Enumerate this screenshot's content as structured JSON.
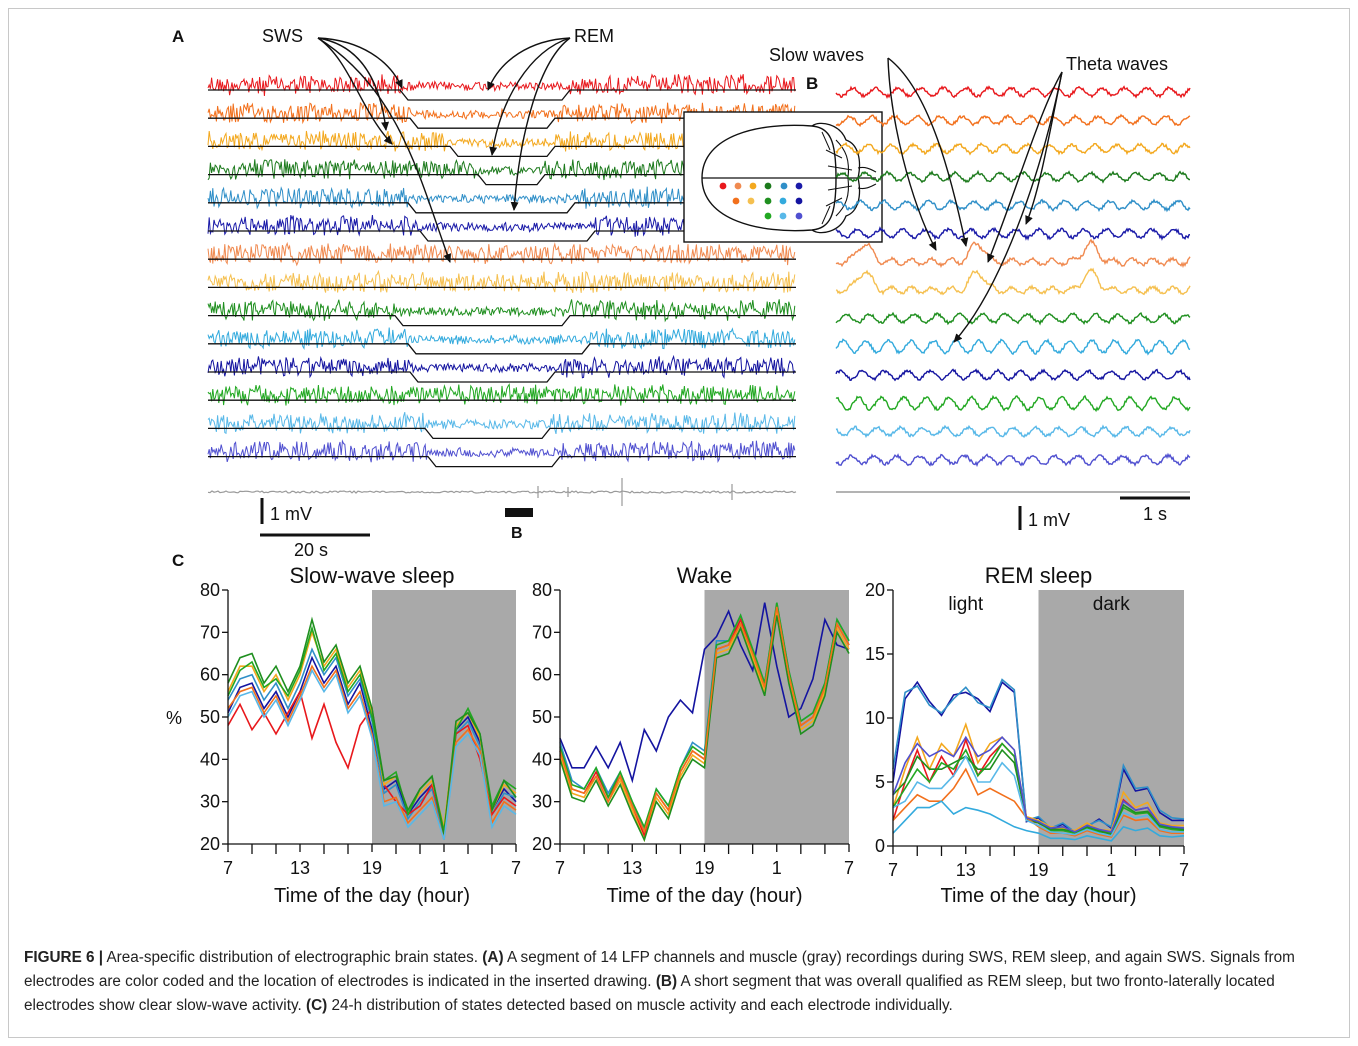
{
  "panel_labels": {
    "a": "A",
    "b": "B",
    "c": "C"
  },
  "panel_a": {
    "annotations": {
      "sws": "SWS",
      "rem": "REM"
    },
    "scale_voltage": "1 mV",
    "scale_time": "20 s",
    "segment_marker": "B"
  },
  "panel_b": {
    "annotations": {
      "slow": "Slow waves",
      "theta": "Theta waves"
    },
    "scale_voltage": "1 mV",
    "scale_time": "1 s"
  },
  "channel_colors": [
    "#e8181c",
    "#f2701c",
    "#f3a81e",
    "#1c7a1c",
    "#2f8fc8",
    "#1a1aa8",
    "#f08a50",
    "#f5c050",
    "#1f8f1f",
    "#33aadd",
    "#1414a0",
    "#22a822",
    "#58b8e8",
    "#5050d0"
  ],
  "muscle_color": "#9a9a9a",
  "inset_electrodes": [
    "#e8181c",
    "#f2701c",
    "#f3a81e",
    "#1c7a1c",
    "#2f8fc8",
    "#1a1aa8",
    "#f08a50",
    "#f5c050",
    "#1f8f1f",
    "#33aadd",
    "#1414a0",
    "#22a822",
    "#58b8e8",
    "#5050d0"
  ],
  "chart_data": [
    {
      "type": "line",
      "title": "Slow-wave sleep",
      "ylabel": "%",
      "xlabel": "Time of the day (hour)",
      "ylim": [
        20,
        80
      ],
      "yticks": [
        20,
        30,
        40,
        50,
        60,
        70,
        80
      ],
      "xtick_labels": [
        "7",
        "13",
        "19",
        "1",
        "7"
      ],
      "dark_period": [
        19,
        31
      ],
      "x": [
        7,
        8,
        9,
        10,
        11,
        12,
        13,
        14,
        15,
        16,
        17,
        18,
        19,
        20,
        21,
        22,
        23,
        24,
        25,
        26,
        27,
        28,
        29,
        30,
        31
      ],
      "series": [
        {
          "values": [
            51,
            57,
            58,
            52,
            56,
            50,
            56,
            64,
            58,
            62,
            53,
            58,
            47,
            33,
            35,
            27,
            31,
            34,
            23,
            47,
            50,
            44,
            28,
            33,
            30
          ]
        },
        {
          "values": [
            54,
            59,
            60,
            54,
            58,
            52,
            58,
            66,
            60,
            64,
            55,
            59,
            49,
            32,
            34,
            26,
            30,
            33,
            22,
            46,
            49,
            43,
            27,
            32,
            31
          ]
        },
        {
          "values": [
            48,
            53,
            47,
            51,
            46,
            51,
            56,
            45,
            53,
            44,
            38,
            48,
            52,
            34,
            30,
            27,
            29,
            34,
            23,
            46,
            48,
            40,
            27,
            31,
            29
          ]
        },
        {
          "values": [
            56,
            62,
            62,
            56,
            60,
            54,
            60,
            70,
            62,
            66,
            57,
            61,
            51,
            34,
            36,
            28,
            32,
            35,
            24,
            48,
            51,
            45,
            28,
            34,
            32
          ]
        },
        {
          "values": [
            55,
            61,
            63,
            57,
            59,
            55,
            61,
            71,
            61,
            65,
            56,
            60,
            50,
            35,
            37,
            27,
            33,
            36,
            23,
            47,
            52,
            46,
            29,
            35,
            33
          ]
        },
        {
          "values": [
            58,
            64,
            65,
            58,
            62,
            56,
            62,
            73,
            63,
            67,
            58,
            62,
            52,
            35,
            36,
            28,
            33,
            36,
            22,
            49,
            51,
            46,
            28,
            35,
            31
          ]
        },
        {
          "values": [
            52,
            56,
            57,
            51,
            55,
            49,
            55,
            62,
            57,
            61,
            52,
            56,
            46,
            30,
            31,
            25,
            28,
            31,
            21,
            44,
            47,
            42,
            25,
            30,
            28
          ]
        },
        {
          "values": [
            50,
            55,
            56,
            50,
            54,
            48,
            54,
            61,
            56,
            60,
            51,
            55,
            45,
            29,
            30,
            24,
            27,
            30,
            21,
            43,
            46,
            41,
            24,
            29,
            27
          ]
        }
      ]
    },
    {
      "type": "line",
      "title": "Wake",
      "ylabel": "",
      "xlabel": "Time of the day (hour)",
      "ylim": [
        20,
        80
      ],
      "yticks": [
        20,
        30,
        40,
        50,
        60,
        70,
        80
      ],
      "xtick_labels": [
        "7",
        "13",
        "19",
        "1",
        "7"
      ],
      "dark_period": [
        19,
        31
      ],
      "x": [
        7,
        8,
        9,
        10,
        11,
        12,
        13,
        14,
        15,
        16,
        17,
        18,
        19,
        20,
        21,
        22,
        23,
        24,
        25,
        26,
        27,
        28,
        29,
        30,
        31
      ],
      "series": [
        {
          "values": [
            45,
            38,
            38,
            43,
            38,
            44,
            35,
            47,
            42,
            50,
            54,
            51,
            66,
            69,
            75,
            67,
            61,
            77,
            62,
            50,
            52,
            59,
            73,
            67,
            66
          ]
        },
        {
          "values": [
            44,
            35,
            33,
            38,
            32,
            37,
            30,
            23,
            33,
            29,
            38,
            44,
            42,
            68,
            68,
            74,
            66,
            58,
            77,
            61,
            49,
            51,
            58,
            73,
            68
          ]
        },
        {
          "values": [
            42,
            33,
            32,
            37,
            31,
            36,
            29,
            22,
            32,
            28,
            37,
            42,
            40,
            66,
            67,
            73,
            65,
            57,
            76,
            60,
            48,
            50,
            57,
            72,
            67
          ]
        },
        {
          "values": [
            41,
            32,
            31,
            36,
            30,
            35,
            28,
            21,
            31,
            27,
            36,
            41,
            39,
            65,
            66,
            72,
            64,
            56,
            75,
            59,
            47,
            49,
            56,
            71,
            66
          ]
        },
        {
          "values": [
            43,
            34,
            33,
            38,
            31,
            37,
            30,
            24,
            33,
            29,
            38,
            43,
            41,
            67,
            68,
            74,
            66,
            58,
            77,
            61,
            49,
            51,
            58,
            73,
            68
          ]
        },
        {
          "values": [
            40,
            31,
            30,
            35,
            29,
            34,
            27,
            21,
            30,
            26,
            35,
            40,
            38,
            64,
            65,
            71,
            63,
            55,
            74,
            58,
            46,
            48,
            55,
            70,
            65
          ]
        },
        {
          "values": [
            42,
            33,
            32,
            36,
            30,
            36,
            29,
            23,
            32,
            28,
            37,
            42,
            40,
            66,
            67,
            72,
            65,
            57,
            76,
            60,
            48,
            50,
            57,
            72,
            67
          ]
        }
      ]
    },
    {
      "type": "line",
      "title": "REM sleep",
      "ylabel": "",
      "xlabel": "Time of the day (hour)",
      "ylim": [
        0,
        20
      ],
      "yticks": [
        0,
        5,
        10,
        15,
        20
      ],
      "xtick_labels": [
        "7",
        "13",
        "19",
        "1",
        "7"
      ],
      "dark_period": [
        19,
        31
      ],
      "period_labels": {
        "light": "light",
        "dark": "dark"
      },
      "x": [
        7,
        8,
        9,
        10,
        11,
        12,
        13,
        14,
        15,
        16,
        17,
        18,
        19,
        20,
        21,
        22,
        23,
        24,
        25,
        26,
        27,
        28,
        29,
        30,
        31
      ],
      "series": [
        {
          "values": [
            5,
            11.5,
            12.8,
            11.3,
            10.2,
            11.8,
            12.0,
            11.5,
            10.5,
            12.8,
            12.0,
            1.9,
            2.2,
            1.3,
            1.7,
            1.0,
            1.5,
            2.1,
            1.4,
            6.0,
            4.3,
            4.5,
            2.6,
            2.0,
            2.0
          ]
        },
        {
          "values": [
            6,
            12.0,
            12.5,
            11.0,
            10.4,
            11.5,
            12.4,
            11.2,
            10.8,
            13.0,
            12.2,
            2.0,
            2.3,
            1.4,
            1.8,
            1.1,
            1.6,
            2.0,
            1.5,
            6.3,
            4.5,
            4.6,
            2.8,
            2.2,
            2.1
          ]
        },
        {
          "values": [
            2,
            5.0,
            7.5,
            5.0,
            7.0,
            5.5,
            8.3,
            5.5,
            7.0,
            8.0,
            7.0,
            2.0,
            1.8,
            1.4,
            1.2,
            1.1,
            1.6,
            1.2,
            1.0,
            3.6,
            2.8,
            3.0,
            1.5,
            1.4,
            1.4
          ]
        },
        {
          "values": [
            3,
            6.0,
            8.5,
            6.0,
            8.0,
            7.0,
            9.5,
            6.5,
            8.0,
            8.5,
            7.5,
            2.3,
            2.0,
            1.5,
            1.4,
            1.2,
            1.8,
            1.3,
            1.2,
            4.2,
            3.0,
            3.4,
            1.8,
            1.6,
            1.6
          ]
        },
        {
          "values": [
            3,
            4.5,
            6.0,
            5.0,
            6.5,
            6.0,
            7.5,
            5.5,
            6.5,
            8.0,
            7.0,
            2.0,
            1.9,
            1.2,
            1.2,
            1.0,
            1.4,
            1.1,
            1.0,
            3.0,
            2.5,
            2.6,
            1.5,
            1.3,
            1.2
          ]
        },
        {
          "values": [
            4,
            5.0,
            7.0,
            6.0,
            6.0,
            6.5,
            7.0,
            6.0,
            6.0,
            7.5,
            6.5,
            2.1,
            1.8,
            1.3,
            1.3,
            1.1,
            1.5,
            1.2,
            0.9,
            3.2,
            2.6,
            2.7,
            1.6,
            1.4,
            1.3
          ]
        },
        {
          "values": [
            2,
            3.0,
            4.0,
            3.5,
            3.5,
            4.5,
            6.0,
            4.0,
            4.5,
            4.0,
            3.5,
            2.2,
            1.5,
            1.0,
            1.0,
            0.8,
            1.2,
            0.9,
            0.7,
            2.4,
            2.0,
            2.1,
            1.2,
            1.0,
            1.0
          ]
        },
        {
          "values": [
            3,
            3.5,
            5.0,
            4.5,
            4.5,
            5.5,
            7.0,
            5.0,
            5.0,
            6.5,
            5.5,
            2.0,
            1.6,
            1.1,
            1.0,
            0.9,
            1.3,
            1.0,
            0.8,
            2.6,
            2.2,
            2.4,
            1.3,
            1.1,
            1.1
          ]
        },
        {
          "values": [
            1,
            2.0,
            3.0,
            3.0,
            3.5,
            2.5,
            3.0,
            2.8,
            2.5,
            2.0,
            1.5,
            1.2,
            1.0,
            0.6,
            0.6,
            0.5,
            0.8,
            0.6,
            0.4,
            1.5,
            1.2,
            1.4,
            0.8,
            0.7,
            0.8
          ]
        },
        {
          "values": [
            4,
            6.5,
            8.0,
            7.0,
            7.5,
            7.0,
            8.5,
            7.0,
            7.5,
            8.5,
            7.5,
            2.2,
            1.9,
            1.4,
            1.5,
            1.1,
            1.6,
            1.3,
            1.1,
            3.5,
            2.8,
            3.0,
            1.7,
            1.5,
            1.4
          ]
        }
      ]
    }
  ],
  "caption": {
    "figure_label": "FIGURE 6 |",
    "lead": " Area-specific distribution of electrographic brain states. ",
    "a_label": "(A)",
    "a_text": " A segment of 14 LFP channels and muscle (gray) recordings during SWS, REM sleep, and again SWS. Signals from electrodes are color coded and the location of electrodes is indicated in the inserted drawing. ",
    "b_label": "(B)",
    "b_text": " A short segment that was overall qualified as REM sleep, but two fronto-laterally located electrodes show clear slow-wave activity. ",
    "c_label": "(C)",
    "c_text": " 24-h distribution of states detected based on muscle activity and each electrode individually."
  }
}
